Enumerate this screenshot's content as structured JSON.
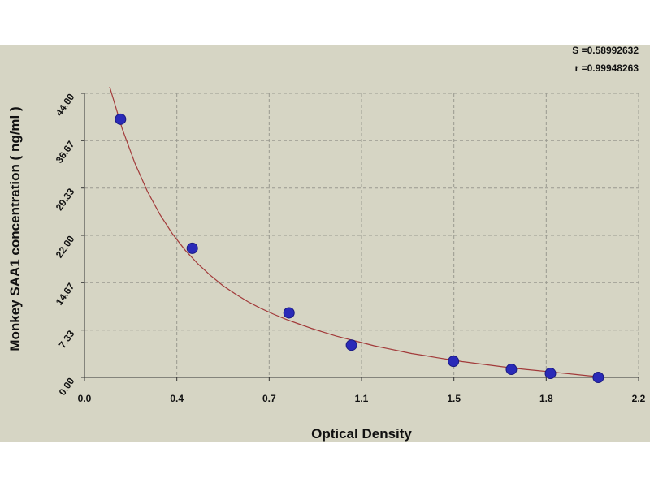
{
  "stats": {
    "s_line": "S =0.58992632",
    "r_line": "r =0.99948263"
  },
  "colors": {
    "background_frame": "#d6d5c4",
    "plot_area": "#d6d5c4",
    "grid": "#9a9a90",
    "curve": "#a23a3a",
    "points": "#2a2ab8"
  },
  "chart_data": {
    "type": "scatter",
    "title": "",
    "xlabel": "Optical Density",
    "ylabel": "Monkey SAA1 concentration ( ng/ml )",
    "xlim": [
      0,
      2.2
    ],
    "ylim": [
      0,
      44
    ],
    "x_ticks": [
      "0.0",
      "0.4",
      "0.7",
      "1.1",
      "1.5",
      "1.8",
      "2.2"
    ],
    "x_tick_values": [
      0,
      0.3667,
      0.7333,
      1.1,
      1.4667,
      1.8333,
      2.2
    ],
    "y_ticks": [
      "0.00",
      "7.33",
      "14.67",
      "22.00",
      "29.33",
      "36.67",
      "44.00"
    ],
    "y_tick_values": [
      0,
      7.33,
      14.67,
      22.0,
      29.33,
      36.67,
      44.0
    ],
    "grid": true,
    "series": [
      {
        "type": "scatter",
        "x": [
          0.143,
          0.428,
          0.812,
          1.06,
          1.465,
          1.695,
          1.85,
          2.04
        ],
        "y": [
          40.0,
          20.0,
          10.0,
          5.0,
          2.5,
          1.25,
          0.625,
          0.0
        ]
      },
      {
        "type": "line",
        "x": [
          0.1,
          0.15,
          0.2,
          0.25,
          0.3,
          0.35,
          0.4,
          0.45,
          0.5,
          0.55,
          0.6,
          0.65,
          0.7,
          0.75,
          0.8,
          0.85,
          0.9,
          0.95,
          1.0,
          1.05,
          1.1,
          1.15,
          1.2,
          1.25,
          1.3,
          1.35,
          1.4,
          1.45,
          1.5,
          1.55,
          1.6,
          1.65,
          1.7,
          1.75,
          1.8,
          1.85,
          1.9,
          1.95,
          2.0,
          2.05
        ],
        "y": [
          45.0,
          38.5,
          33.2,
          28.8,
          25.2,
          22.2,
          19.7,
          17.6,
          15.8,
          14.2,
          12.9,
          11.7,
          10.7,
          9.8,
          9.0,
          8.3,
          7.6,
          7.0,
          6.4,
          5.9,
          5.4,
          4.9,
          4.5,
          4.1,
          3.7,
          3.4,
          3.05,
          2.75,
          2.45,
          2.2,
          1.95,
          1.7,
          1.45,
          1.25,
          1.05,
          0.85,
          0.65,
          0.45,
          0.25,
          0.08
        ]
      }
    ]
  }
}
